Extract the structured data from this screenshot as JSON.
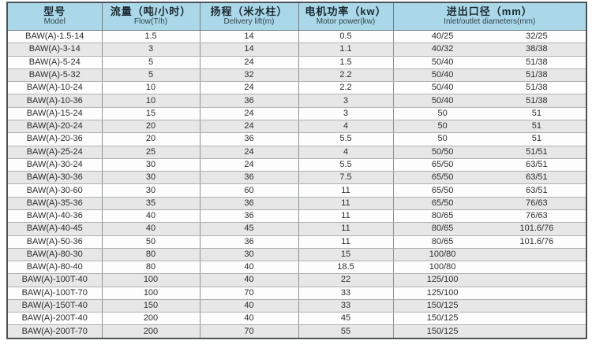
{
  "colors": {
    "header_bg": "#aad8e8",
    "row_bg": "#fdfdfd",
    "stripe_bg": "#e7e7e7",
    "outer_border": "#4f5355",
    "inner_border": "#8d9194",
    "header_text": "#1c2b31",
    "cell_text": "#2d2d2d"
  },
  "table": {
    "columns": [
      {
        "zh": "型号",
        "en": "Model"
      },
      {
        "zh": "流量（吨/小时）",
        "en": "Flow(T/h)"
      },
      {
        "zh": "扬程（米水柱）",
        "en": "Delivery lift(m)"
      },
      {
        "zh": "电机功率（kw）",
        "en": "Motor power(kw)"
      },
      {
        "zh": "进出口径（mm）",
        "en": "Inlet/outlet  diameters(mm)"
      }
    ],
    "rows": [
      {
        "model": "BAW(A)-1.5-14",
        "flow": "1.5",
        "lift": "14",
        "power": "0.5",
        "io1": "40/25",
        "io2": "32/25"
      },
      {
        "model": "BAW(A)-3-14",
        "flow": "3",
        "lift": "14",
        "power": "1.1",
        "io1": "40/32",
        "io2": "38/38"
      },
      {
        "model": "BAW(A)-5-24",
        "flow": "5",
        "lift": "24",
        "power": "1.5",
        "io1": "50/40",
        "io2": "51/38"
      },
      {
        "model": "BAW(A)-5-32",
        "flow": "5",
        "lift": "32",
        "power": "2.2",
        "io1": "50/40",
        "io2": "51/38"
      },
      {
        "model": "BAW(A)-10-24",
        "flow": "10",
        "lift": "24",
        "power": "2.2",
        "io1": "50/40",
        "io2": "51/38"
      },
      {
        "model": "BAW(A)-10-36",
        "flow": "10",
        "lift": "36",
        "power": "3",
        "io1": "50/40",
        "io2": "51/38"
      },
      {
        "model": "BAW(A)-15-24",
        "flow": "15",
        "lift": "24",
        "power": "3",
        "io1": "50",
        "io2": "51"
      },
      {
        "model": "BAW(A)-20-24",
        "flow": "20",
        "lift": "24",
        "power": "4",
        "io1": "50",
        "io2": "51"
      },
      {
        "model": "BAW(A)-20-36",
        "flow": "20",
        "lift": "36",
        "power": "5.5",
        "io1": "50",
        "io2": "51"
      },
      {
        "model": "BAW(A)-25-24",
        "flow": "25",
        "lift": "24",
        "power": "4",
        "io1": "50/50",
        "io2": "51/51"
      },
      {
        "model": "BAW(A)-30-24",
        "flow": "30",
        "lift": "24",
        "power": "5.5",
        "io1": "65/50",
        "io2": "63/51"
      },
      {
        "model": "BAW(A)-30-36",
        "flow": "30",
        "lift": "36",
        "power": "7.5",
        "io1": "65/50",
        "io2": "63/51"
      },
      {
        "model": "BAW(A)-30-60",
        "flow": "30",
        "lift": "60",
        "power": "11",
        "io1": "65/50",
        "io2": "63/51"
      },
      {
        "model": "BAW(A)-35-36",
        "flow": "35",
        "lift": "36",
        "power": "11",
        "io1": "65/50",
        "io2": "76/63"
      },
      {
        "model": "BAW(A)-40-36",
        "flow": "40",
        "lift": "36",
        "power": "11",
        "io1": "80/65",
        "io2": "76/63"
      },
      {
        "model": "BAW(A)-40-45",
        "flow": "40",
        "lift": "45",
        "power": "11",
        "io1": "80/65",
        "io2": "101.6/76"
      },
      {
        "model": "BAW(A)-50-36",
        "flow": "50",
        "lift": "36",
        "power": "11",
        "io1": "80/65",
        "io2": "101.6/76"
      },
      {
        "model": "BAW(A)-80-30",
        "flow": "80",
        "lift": "30",
        "power": "15",
        "io1": "100/80",
        "io2": ""
      },
      {
        "model": "BAW(A)-80-40",
        "flow": "80",
        "lift": "40",
        "power": "18.5",
        "io1": "100/80",
        "io2": ""
      },
      {
        "model": "BAW(A)-100T-40",
        "flow": "100",
        "lift": "40",
        "power": "22",
        "io1": "125/100",
        "io2": ""
      },
      {
        "model": "BAW(A)-100T-70",
        "flow": "100",
        "lift": "70",
        "power": "33",
        "io1": "125/100",
        "io2": ""
      },
      {
        "model": "BAW(A)-150T-40",
        "flow": "150",
        "lift": "40",
        "power": "33",
        "io1": "150/125",
        "io2": ""
      },
      {
        "model": "BAW(A)-200T-40",
        "flow": "200",
        "lift": "40",
        "power": "45",
        "io1": "150/125",
        "io2": ""
      },
      {
        "model": "BAW(A)-200T-70",
        "flow": "200",
        "lift": "70",
        "power": "55",
        "io1": "150/125",
        "io2": ""
      }
    ]
  }
}
